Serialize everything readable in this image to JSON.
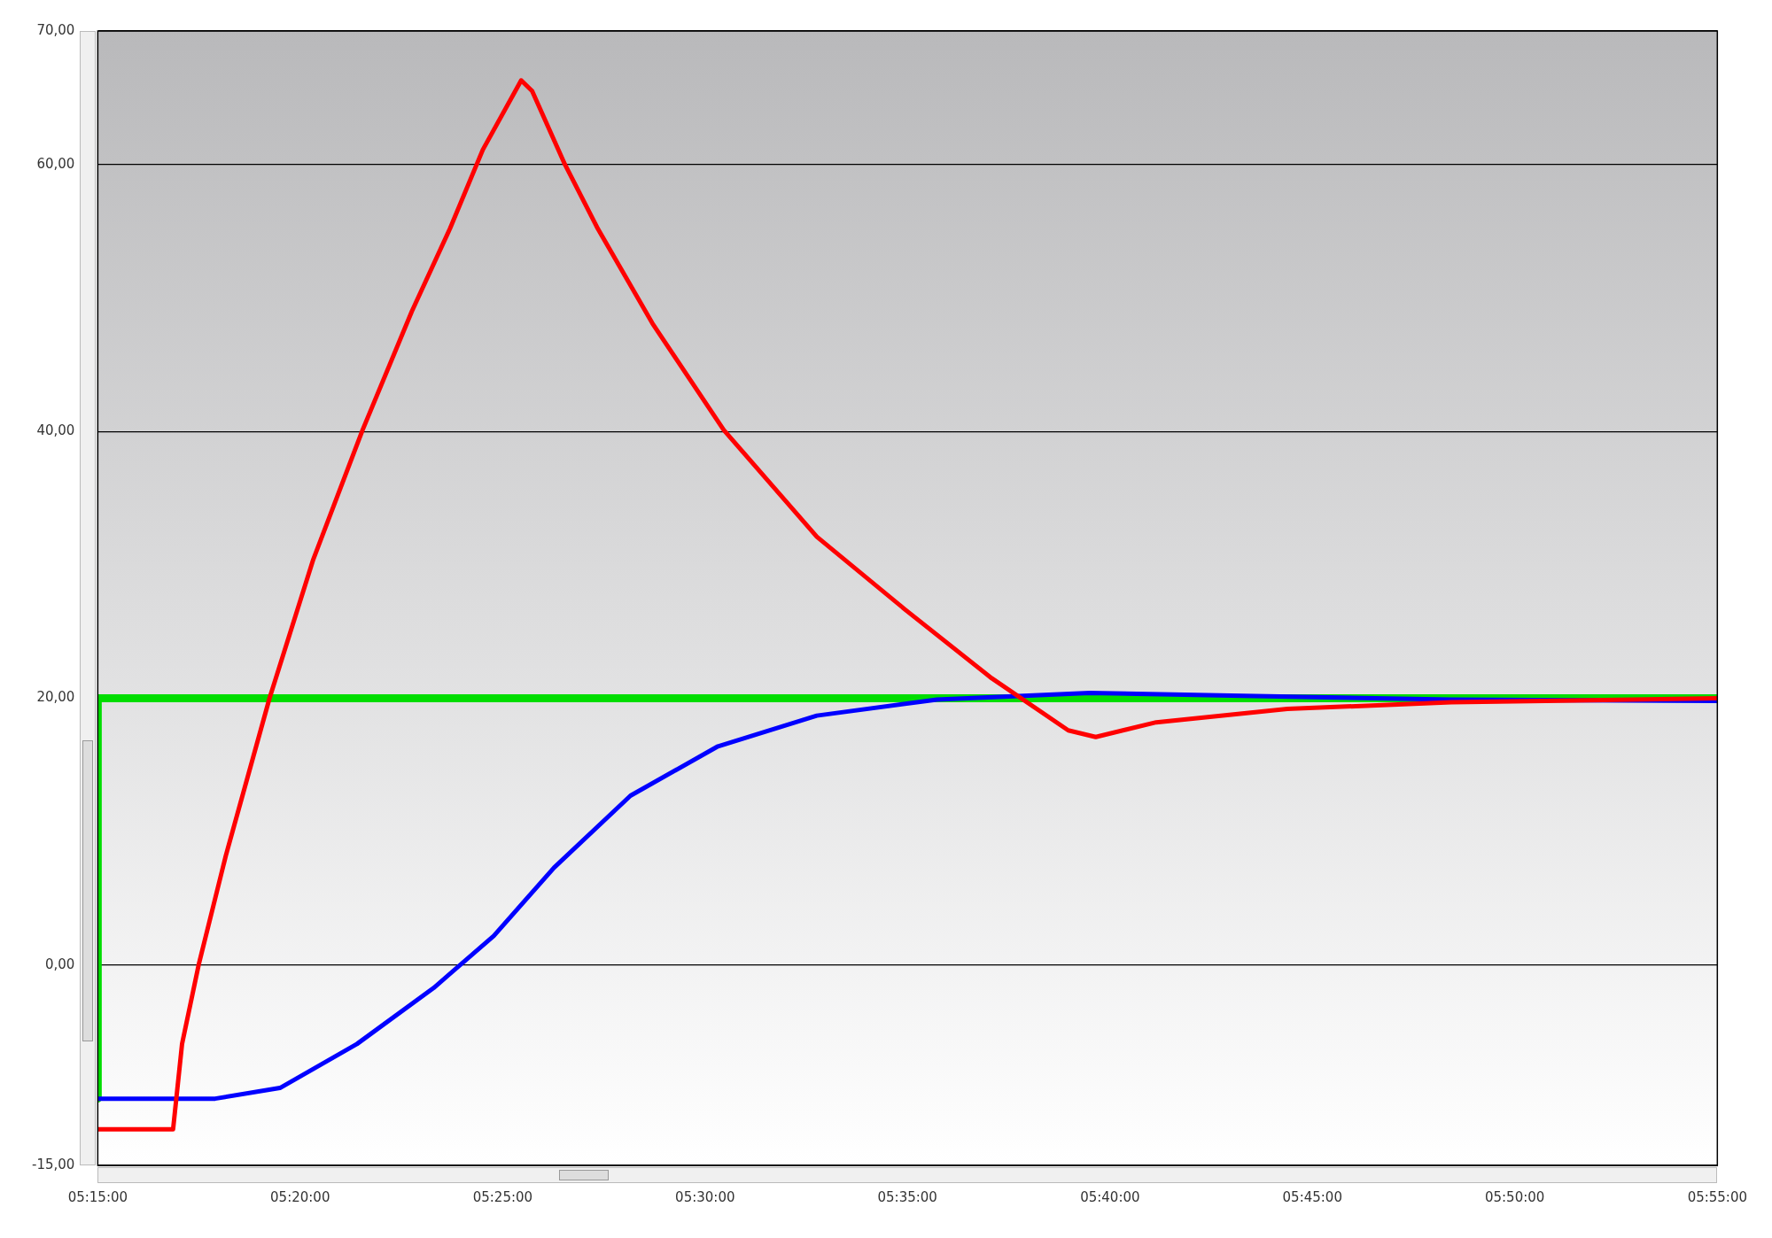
{
  "chart_data": {
    "type": "line",
    "xlim": [
      5.25,
      5.9167
    ],
    "ylim": [
      -15,
      70
    ],
    "xticks": [
      {
        "value": 5.25,
        "label": "05:15:00"
      },
      {
        "value": 5.3333,
        "label": "05:20:00"
      },
      {
        "value": 5.4167,
        "label": "05:25:00"
      },
      {
        "value": 5.5,
        "label": "05:30:00"
      },
      {
        "value": 5.5833,
        "label": "05:35:00"
      },
      {
        "value": 5.6667,
        "label": "05:40:00"
      },
      {
        "value": 5.75,
        "label": "05:45:00"
      },
      {
        "value": 5.8333,
        "label": "05:50:00"
      },
      {
        "value": 5.9167,
        "label": "05:55:00"
      }
    ],
    "yticks": [
      {
        "value": -15,
        "label": "-15,00"
      },
      {
        "value": 0,
        "label": "0,00"
      },
      {
        "value": 20,
        "label": "20,00"
      },
      {
        "value": 40,
        "label": "40,00"
      },
      {
        "value": 60,
        "label": "60,00"
      },
      {
        "value": 70,
        "label": "70,00"
      }
    ],
    "grid": "y",
    "legend": false,
    "marker": "none",
    "line_style": "solid",
    "series": [
      {
        "type": "line",
        "color": "#ff0000",
        "x": [
          5.25,
          5.281,
          5.2847,
          5.2915,
          5.3027,
          5.3207,
          5.3387,
          5.359,
          5.3793,
          5.395,
          5.4085,
          5.4243,
          5.4288,
          5.4423,
          5.4558,
          5.4783,
          5.5077,
          5.546,
          5.582,
          5.618,
          5.6495,
          5.6608,
          5.6857,
          5.7397,
          5.8072,
          5.9167
        ],
        "values": [
          -12.3,
          -12.3,
          -5.9,
          0,
          8.2,
          20,
          30.4,
          40.1,
          49,
          55.2,
          61.1,
          66.3,
          65.5,
          60,
          55.2,
          48.1,
          40.1,
          32.1,
          26.7,
          21.5,
          17.6,
          17.1,
          18.2,
          19.2,
          19.7,
          20
        ]
      },
      {
        "type": "line",
        "color": "#0000ff",
        "x": [
          5.25,
          5.2983,
          5.325,
          5.3567,
          5.3883,
          5.413,
          5.4378,
          5.4693,
          5.5053,
          5.546,
          5.5955,
          5.6583,
          5.7167,
          5.8067,
          5.9167
        ],
        "values": [
          -10,
          -10,
          -9.2,
          -5.9,
          -1.7,
          2.2,
          7.3,
          12.7,
          16.4,
          18.7,
          19.9,
          20.4,
          20.2,
          19.9,
          19.8
        ]
      },
      {
        "type": "step",
        "color": "#00dd00",
        "x": [
          5.25,
          5.2792,
          5.9167
        ],
        "values": [
          -10,
          20,
          20
        ]
      }
    ]
  }
}
